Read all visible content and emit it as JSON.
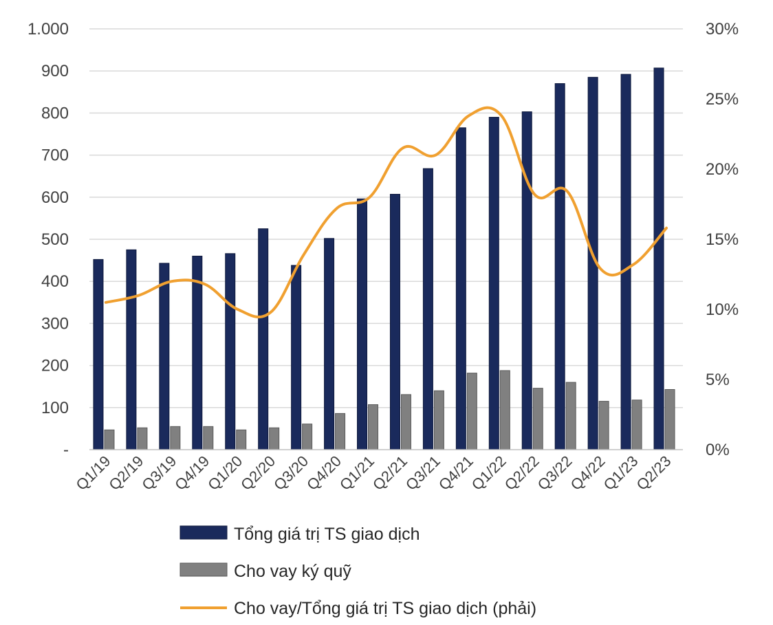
{
  "chart_data": {
    "type": "bar",
    "categories": [
      "Q1/19",
      "Q2/19",
      "Q3/19",
      "Q4/19",
      "Q1/20",
      "Q2/20",
      "Q3/20",
      "Q4/20",
      "Q1/21",
      "Q2/21",
      "Q3/21",
      "Q4/21",
      "Q1/22",
      "Q2/22",
      "Q3/22",
      "Q4/22",
      "Q1/23",
      "Q2/23"
    ],
    "series": [
      {
        "name": "Tổng giá trị TS giao dịch",
        "type": "bar",
        "axis": "left",
        "color": "#1a2a5c",
        "values": [
          452,
          475,
          443,
          460,
          466,
          525,
          438,
          502,
          596,
          607,
          668,
          765,
          790,
          803,
          870,
          885,
          892,
          907
        ]
      },
      {
        "name": "Cho vay ký quỹ",
        "type": "bar",
        "axis": "left",
        "color": "#808080",
        "values": [
          47,
          52,
          55,
          55,
          47,
          52,
          61,
          86,
          107,
          131,
          140,
          182,
          188,
          146,
          160,
          115,
          118,
          143
        ]
      },
      {
        "name": "Cho vay/Tổng giá trị TS giao dịch (phải)",
        "type": "line",
        "axis": "right",
        "color": "#f0a030",
        "values": [
          10.5,
          11.0,
          12.0,
          11.8,
          10.0,
          9.8,
          13.9,
          17.2,
          18.0,
          21.5,
          21.0,
          23.8,
          23.8,
          18.2,
          18.4,
          12.9,
          13.2,
          15.8
        ]
      }
    ],
    "left_axis": {
      "ylim": [
        0,
        1000
      ],
      "ticks": [
        "-",
        "100",
        "200",
        "300",
        "400",
        "500",
        "600",
        "700",
        "800",
        "900",
        "1.000"
      ]
    },
    "right_axis": {
      "ylim": [
        0,
        30
      ],
      "ticks": [
        "0%",
        "5%",
        "10%",
        "15%",
        "20%",
        "25%",
        "30%"
      ]
    },
    "grid": true,
    "legend_position": "bottom"
  }
}
